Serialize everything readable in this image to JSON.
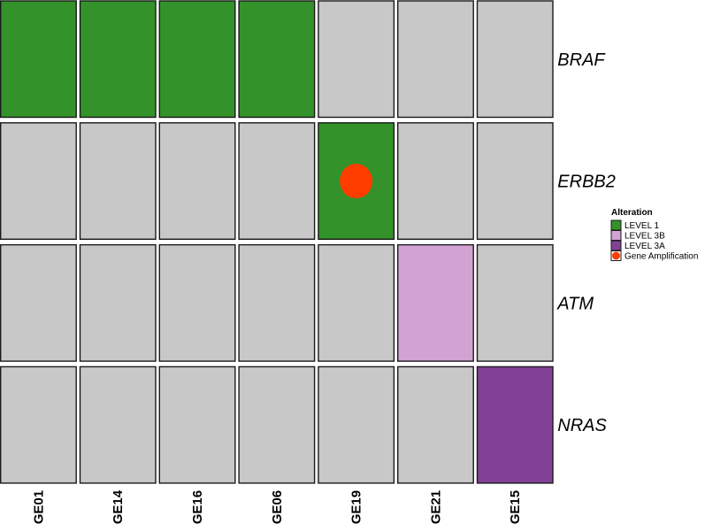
{
  "chart_data": {
    "type": "heatmap",
    "title": "",
    "genes": [
      "BRAF",
      "ERBB2",
      "ATM",
      "NRAS"
    ],
    "samples": [
      "GE01",
      "GE14",
      "GE16",
      "GE06",
      "GE19",
      "GE21",
      "GE15"
    ],
    "alterations": [
      [
        "LEVEL 1",
        "LEVEL 1",
        "LEVEL 1",
        "LEVEL 1",
        "",
        "",
        ""
      ],
      [
        "",
        "",
        "",
        "",
        "LEVEL 1",
        "",
        ""
      ],
      [
        "",
        "",
        "",
        "",
        "",
        "LEVEL 3B",
        ""
      ],
      [
        "",
        "",
        "",
        "",
        "",
        "",
        "LEVEL 3A"
      ]
    ],
    "amplifications": [
      {
        "gene": "ERBB2",
        "sample": "GE19",
        "type": "Gene Amplification"
      }
    ],
    "colors": {
      "none": "#c8c8c8",
      "LEVEL 1": "#33932a",
      "LEVEL 3B": "#d2a2d3",
      "LEVEL 3A": "#824196",
      "Gene Amplification": "#ff3d00"
    },
    "legend": {
      "title": "Alteration",
      "position": "right",
      "items": [
        {
          "label": "LEVEL 1",
          "key": "LEVEL 1",
          "shape": "square"
        },
        {
          "label": "LEVEL 3B",
          "key": "LEVEL 3B",
          "shape": "square"
        },
        {
          "label": "LEVEL 3A",
          "key": "LEVEL 3A",
          "shape": "square"
        },
        {
          "label": "Gene Amplification",
          "key": "Gene Amplification",
          "shape": "circle"
        }
      ]
    }
  }
}
